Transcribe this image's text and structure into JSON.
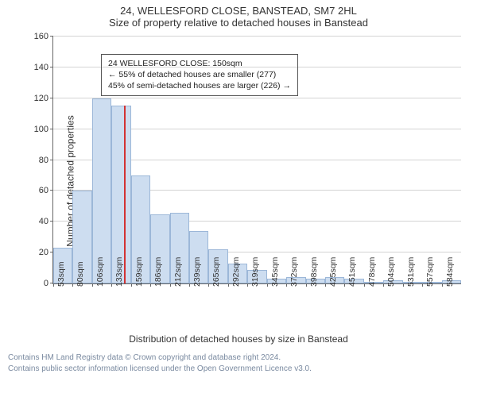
{
  "title": "24, WELLESFORD CLOSE, BANSTEAD, SM7 2HL",
  "subtitle": "Size of property relative to detached houses in Banstead",
  "chart": {
    "type": "histogram",
    "ylabel": "Number of detached properties",
    "xlabel": "Distribution of detached houses by size in Banstead",
    "ylim": [
      0,
      160
    ],
    "ytick_step": 20,
    "bar_color": "#cdddf0",
    "bar_border_color": "#9cb7d8",
    "grid_color": "#555555",
    "axis_color": "#666666",
    "background_color": "#ffffff",
    "marker_color": "#d33333",
    "marker_value": 150,
    "xcategories": [
      "53sqm",
      "80sqm",
      "106sqm",
      "133sqm",
      "159sqm",
      "186sqm",
      "212sqm",
      "239sqm",
      "265sqm",
      "292sqm",
      "319sqm",
      "345sqm",
      "372sqm",
      "398sqm",
      "425sqm",
      "451sqm",
      "478sqm",
      "504sqm",
      "531sqm",
      "557sqm",
      "584sqm"
    ],
    "values": [
      23,
      60,
      120,
      115,
      70,
      45,
      46,
      34,
      22,
      13,
      9,
      3,
      4,
      3,
      4,
      3,
      0,
      2,
      0,
      0,
      2
    ],
    "label_fontsize": 12,
    "tick_fontsize": 11
  },
  "annotation": {
    "line1": "24 WELLESFORD CLOSE: 150sqm",
    "line2": "← 55% of detached houses are smaller (277)",
    "line3": "45% of semi-detached houses are larger (226) →"
  },
  "footer": {
    "line1": "Contains HM Land Registry data © Crown copyright and database right 2024.",
    "line2": "Contains public sector information licensed under the Open Government Licence v3.0."
  }
}
